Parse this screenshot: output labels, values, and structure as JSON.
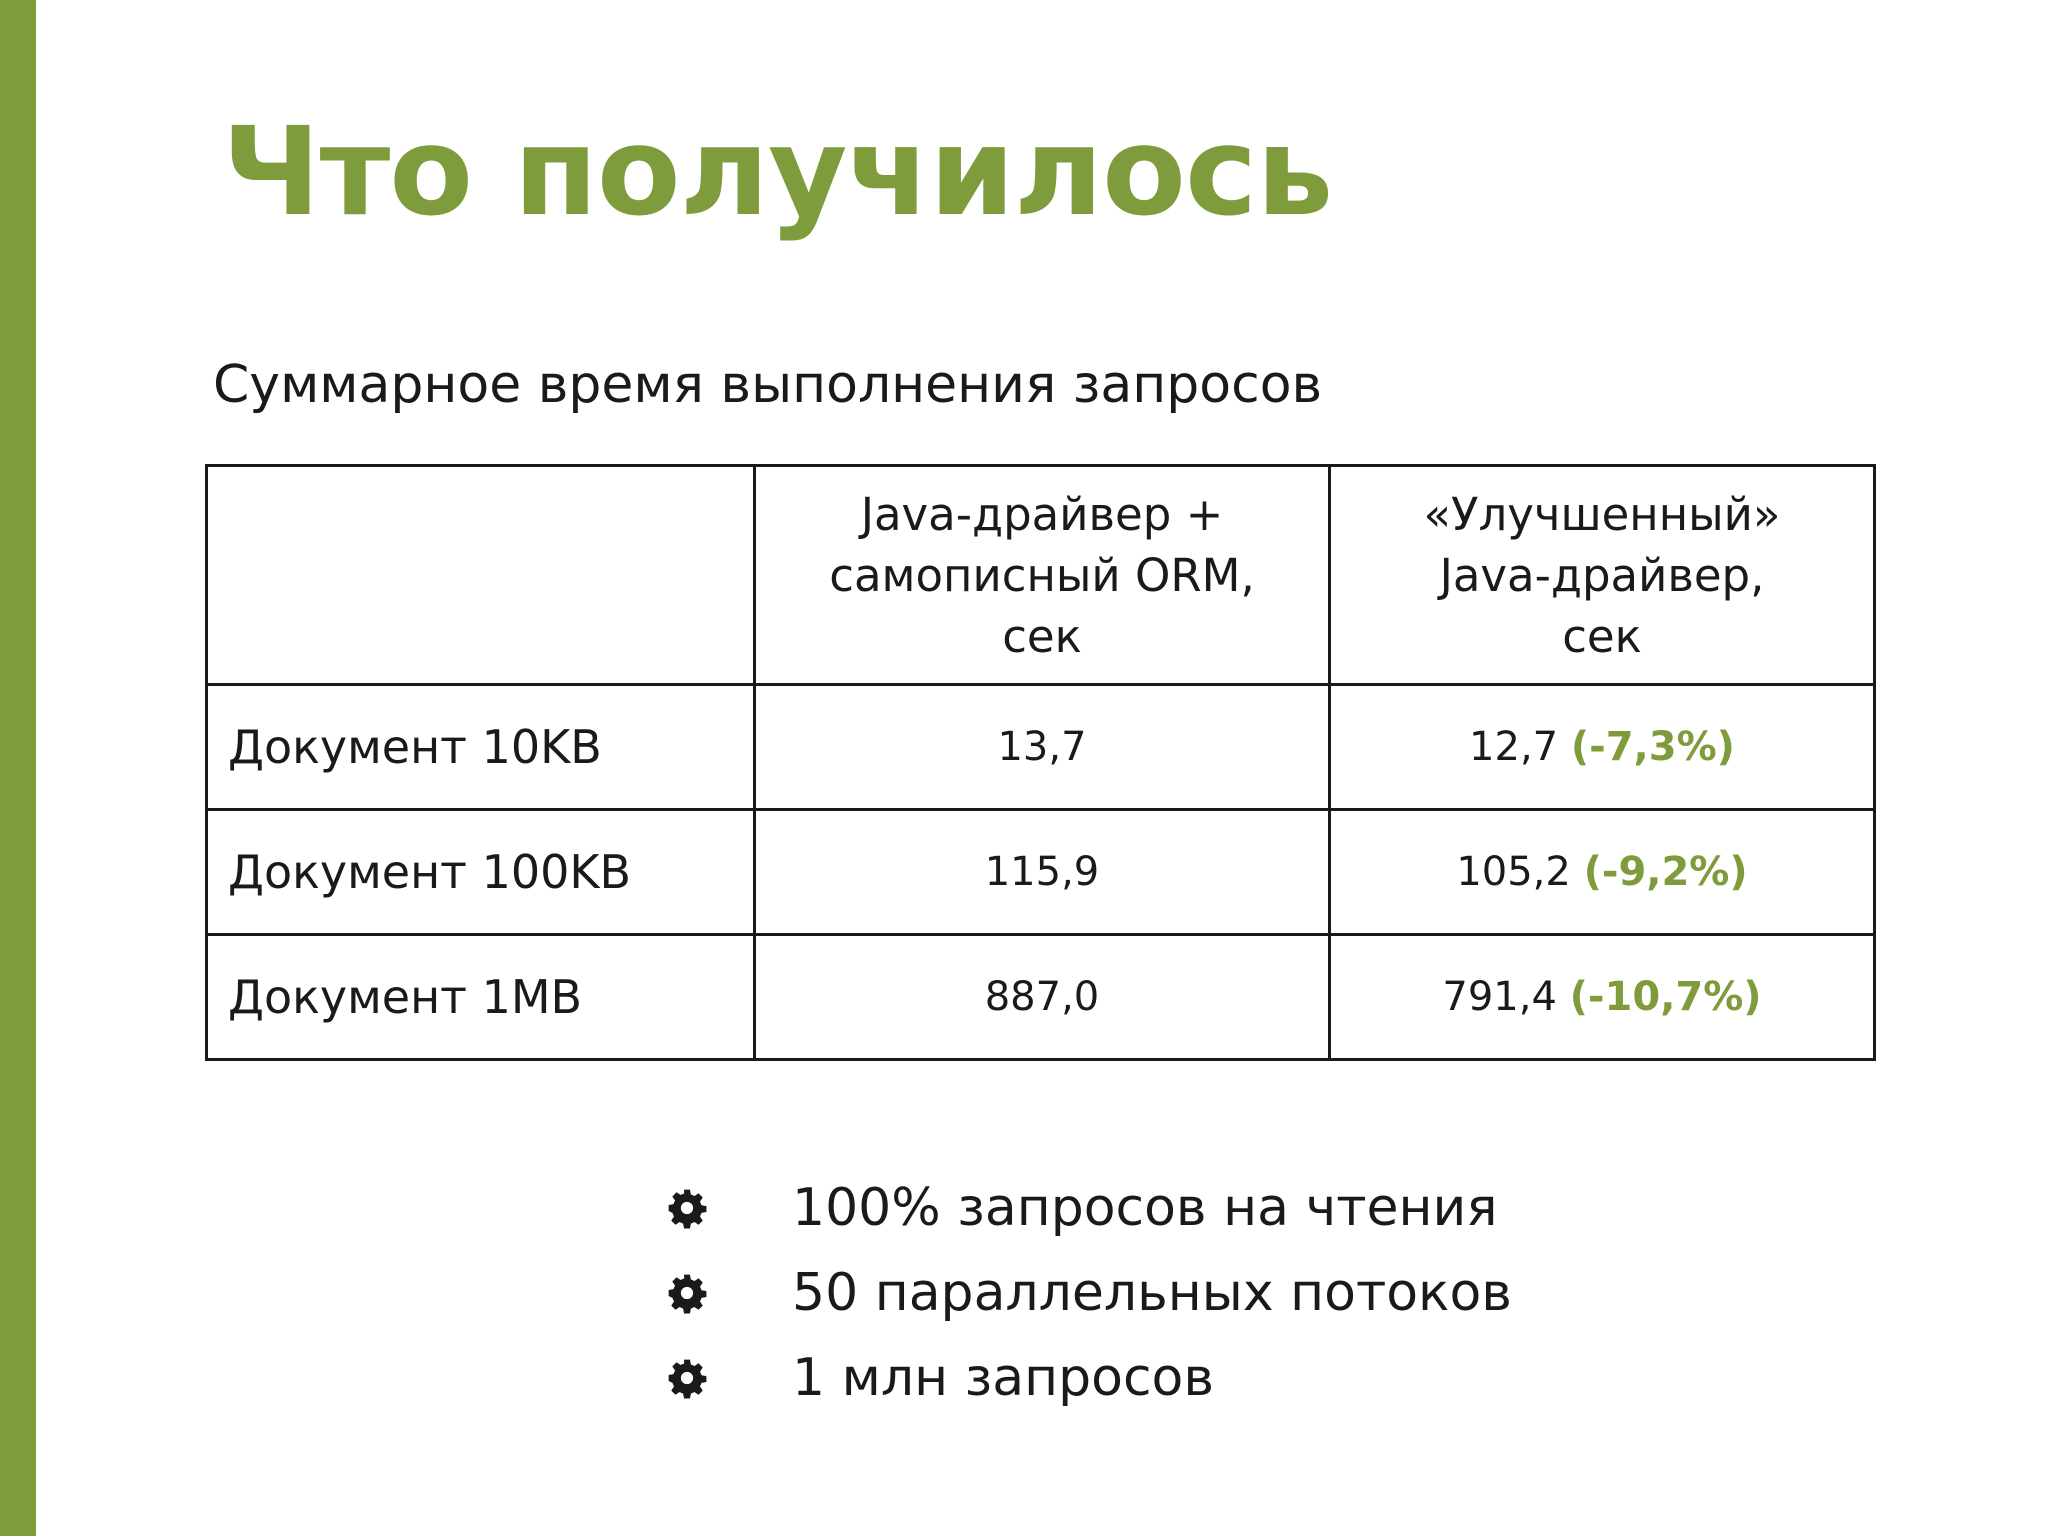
{
  "slide": {
    "title": "Что получилось",
    "subtitle": "Суммарное время выполнения запросов",
    "accent_color": "#7f9c3c"
  },
  "table": {
    "headers": [
      "",
      "Java-драйвер +\nсамописный ORM,\nсек",
      "«Улучшенный»\nJava-драйвер,\nсек"
    ],
    "rows": [
      {
        "label": "Документ 10KB",
        "orm": "13,7",
        "improved": "12,7",
        "delta": "(-7,3%)"
      },
      {
        "label": "Документ 100KB",
        "orm": "115,9",
        "improved": "105,2",
        "delta": "(-9,2%)"
      },
      {
        "label": "Документ 1MB",
        "orm": "887,0",
        "improved": "791,4",
        "delta": "(-10,7%)"
      }
    ]
  },
  "bullets": [
    {
      "icon": "gear-icon",
      "text": "100% запросов на чтения"
    },
    {
      "icon": "gear-icon",
      "text": "50 параллельных потоков"
    },
    {
      "icon": "gear-icon",
      "text": "1 млн запросов"
    }
  ]
}
